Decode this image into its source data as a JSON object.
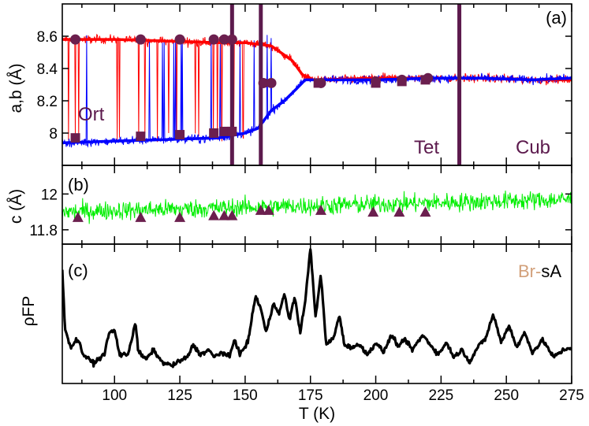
{
  "chart_data": [
    {
      "type": "line",
      "panel": "(a)",
      "ylabel": "a,b (Å)",
      "ylim": [
        7.8,
        8.8
      ],
      "yticks": [
        8,
        8.2,
        8.4,
        8.6
      ],
      "ytick_labels": [
        "8",
        "8.2",
        "8.4",
        "8.6"
      ],
      "xlim": [
        80,
        275
      ],
      "phase_labels": {
        "ort": "Ort",
        "tet": "Tet",
        "cub": "Cub"
      },
      "phase_boundaries": [
        145,
        156,
        232
      ],
      "colors": {
        "a": "#ff0000",
        "b": "#0000ff",
        "markers": "#6b1f4e",
        "boundary": "#5c1a4d"
      },
      "series": [
        {
          "name": "a (red)",
          "x": [
            80,
            100,
            120,
            140,
            150,
            160,
            168,
            172,
            176,
            180,
            200,
            220,
            240,
            260,
            275
          ],
          "values": [
            8.58,
            8.58,
            8.57,
            8.56,
            8.56,
            8.54,
            8.45,
            8.36,
            8.33,
            8.33,
            8.34,
            8.34,
            8.34,
            8.33,
            8.33
          ]
        },
        {
          "name": "b (blue)",
          "x": [
            80,
            100,
            120,
            140,
            150,
            155,
            160,
            165,
            170,
            173,
            176,
            180,
            200,
            220,
            240,
            260,
            275
          ],
          "values": [
            7.94,
            7.95,
            7.96,
            7.97,
            8.0,
            8.03,
            8.14,
            8.2,
            8.28,
            8.33,
            8.33,
            8.33,
            8.33,
            8.34,
            8.34,
            8.33,
            8.34
          ]
        },
        {
          "name": "a markers (circles)",
          "x": [
            85,
            110,
            125,
            138,
            142,
            145
          ],
          "values": [
            8.58,
            8.58,
            8.58,
            8.58,
            8.58,
            8.58
          ]
        },
        {
          "name": "b markers (squares)",
          "x": [
            85,
            110,
            125,
            138,
            142,
            145
          ],
          "values": [
            7.97,
            7.98,
            7.99,
            8.0,
            8.01,
            8.01
          ]
        },
        {
          "name": "transition markers (circles)",
          "x": [
            157,
            160,
            179,
            200,
            210,
            220
          ],
          "values": [
            8.31,
            8.31,
            8.31,
            8.32,
            8.33,
            8.34
          ]
        },
        {
          "name": "transition markers (squares)",
          "x": [
            178,
            200,
            210,
            219
          ],
          "values": [
            8.31,
            8.31,
            8.32,
            8.33
          ]
        }
      ]
    },
    {
      "type": "line",
      "panel": "(b)",
      "ylabel": "c (Å)",
      "ylim": [
        11.72,
        12.16
      ],
      "yticks": [
        11.8,
        12
      ],
      "ytick_labels": [
        "11.8",
        "12"
      ],
      "xlim": [
        80,
        275
      ],
      "colors": {
        "c": "#00ee00",
        "markers": "#6b1f4e"
      },
      "series": [
        {
          "name": "c (green)",
          "x": [
            80,
            275
          ],
          "values": [
            11.9,
            11.97
          ]
        },
        {
          "name": "c markers (triangles)",
          "x": [
            86,
            110,
            125,
            138,
            142,
            145,
            156,
            159,
            179,
            199,
            209,
            219
          ],
          "values": [
            11.87,
            11.87,
            11.87,
            11.88,
            11.88,
            11.88,
            11.91,
            11.91,
            11.91,
            11.9,
            11.9,
            11.9
          ]
        }
      ]
    },
    {
      "type": "line",
      "panel": "(c)",
      "ylabel": "ρFP",
      "legend": {
        "prefix": "Br-",
        "suffix": "sA",
        "prefix_color": "#d2a07a",
        "suffix_color": "#000000"
      },
      "xlabel": "T (K)",
      "xlim": [
        80,
        275
      ],
      "xticks": [
        100,
        125,
        150,
        175,
        200,
        225,
        250,
        275
      ],
      "xtick_labels": [
        "100",
        "125",
        "150",
        "175",
        "200",
        "225",
        "250",
        "275"
      ],
      "ylim": [
        0,
        1
      ],
      "series": [
        {
          "name": "ρFP (black)",
          "x": [
            80,
            81,
            83,
            86,
            88,
            92,
            96,
            98,
            100,
            102,
            105,
            107,
            108,
            109,
            112,
            115,
            118,
            122,
            126,
            128,
            130,
            133,
            136,
            138,
            141,
            144,
            146,
            148,
            151,
            154,
            156,
            158,
            161,
            163,
            165,
            167,
            169,
            171,
            173,
            175,
            177,
            179,
            181,
            184,
            186,
            188,
            191,
            194,
            197,
            200,
            203,
            206,
            209,
            211,
            214,
            218,
            221,
            224,
            227,
            230,
            233,
            236,
            239,
            242,
            245,
            248,
            251,
            254,
            257,
            260,
            264,
            268,
            272,
            275
          ],
          "values": [
            0.82,
            0.35,
            0.18,
            0.25,
            0.12,
            0.05,
            0.12,
            0.3,
            0.32,
            0.12,
            0.12,
            0.28,
            0.4,
            0.15,
            0.08,
            0.16,
            0.06,
            0.03,
            0.08,
            0.1,
            0.2,
            0.12,
            0.16,
            0.1,
            0.14,
            0.1,
            0.25,
            0.12,
            0.22,
            0.6,
            0.5,
            0.3,
            0.55,
            0.45,
            0.62,
            0.4,
            0.6,
            0.3,
            0.55,
            1.0,
            0.42,
            0.78,
            0.2,
            0.26,
            0.45,
            0.2,
            0.18,
            0.2,
            0.12,
            0.22,
            0.14,
            0.28,
            0.18,
            0.25,
            0.16,
            0.28,
            0.2,
            0.12,
            0.22,
            0.1,
            0.16,
            0.06,
            0.18,
            0.25,
            0.45,
            0.22,
            0.36,
            0.18,
            0.3,
            0.14,
            0.24,
            0.1,
            0.16,
            0.18
          ]
        }
      ]
    }
  ]
}
